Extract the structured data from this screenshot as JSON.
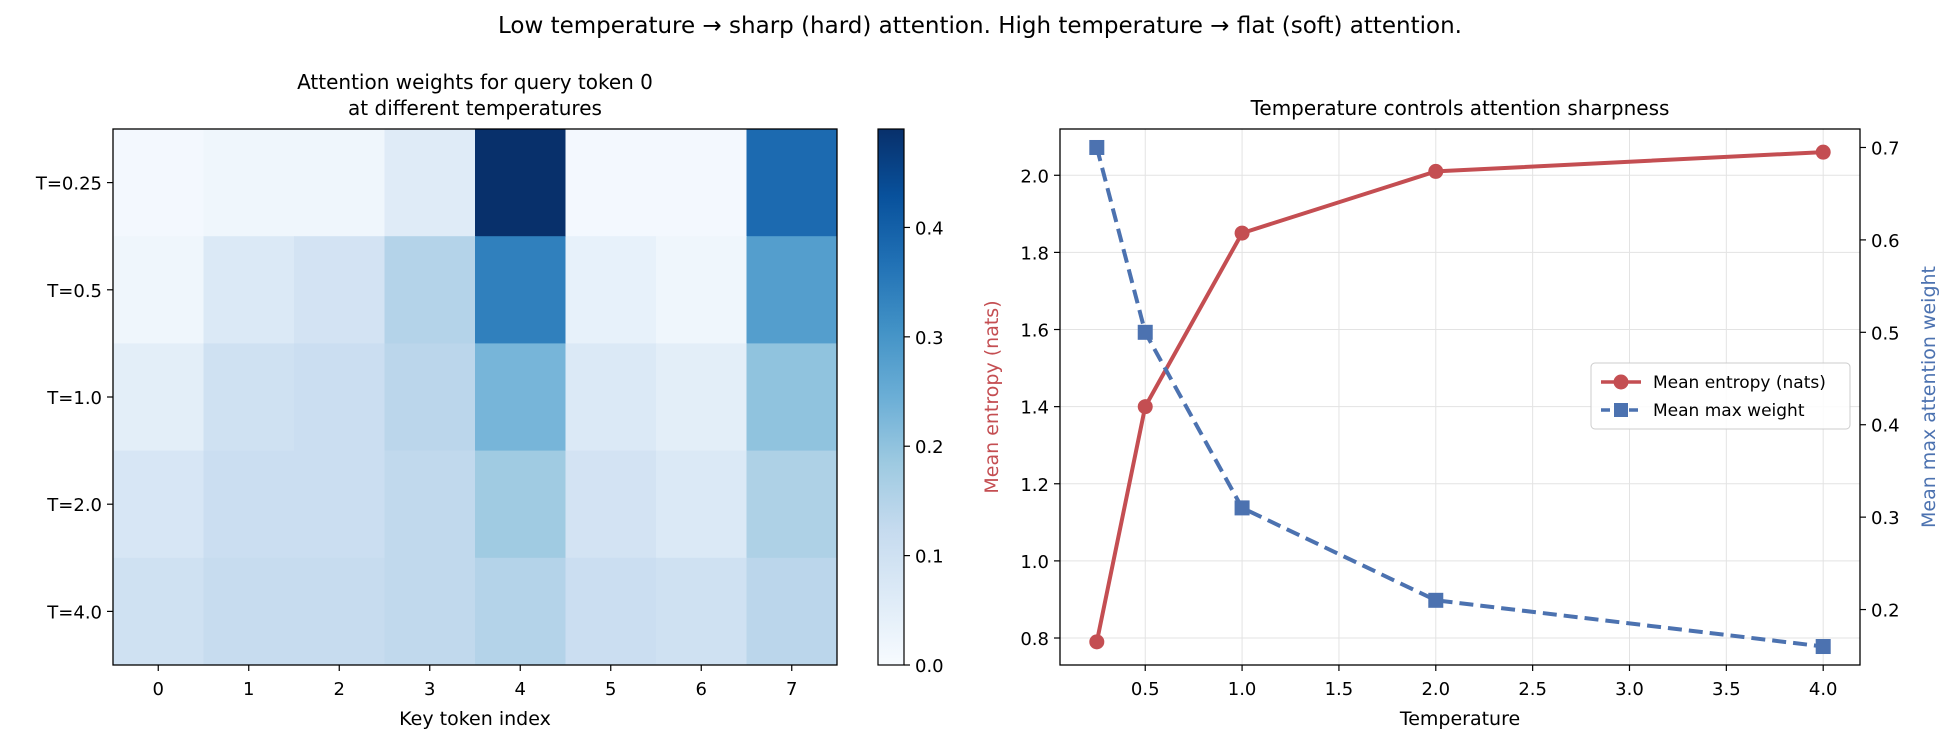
{
  "suptitle": "Low temperature → sharp (hard) attention.  High temperature → flat (soft) attention.",
  "chart_data": [
    {
      "type": "heatmap",
      "title_line1": "Attention weights for query token 0",
      "title_line2": "at different temperatures",
      "xlabel": "Key token index",
      "ylabel": "",
      "x_ticks": [
        "0",
        "1",
        "2",
        "3",
        "4",
        "5",
        "6",
        "7"
      ],
      "y_ticks": [
        "T=0.25",
        "T=0.5",
        "T=1.0",
        "T=2.0",
        "T=4.0"
      ],
      "colormap": "Blues",
      "vmin": 0.0,
      "vmax": 0.49,
      "colorbar_ticks": [
        "0.0",
        "0.1",
        "0.2",
        "0.3",
        "0.4"
      ],
      "values": [
        [
          0.01,
          0.02,
          0.02,
          0.06,
          0.49,
          0.01,
          0.01,
          0.38
        ],
        [
          0.02,
          0.07,
          0.09,
          0.15,
          0.34,
          0.04,
          0.02,
          0.28
        ],
        [
          0.05,
          0.1,
          0.11,
          0.14,
          0.23,
          0.07,
          0.05,
          0.2
        ],
        [
          0.08,
          0.11,
          0.11,
          0.13,
          0.18,
          0.09,
          0.07,
          0.16
        ],
        [
          0.1,
          0.12,
          0.12,
          0.13,
          0.15,
          0.11,
          0.1,
          0.14
        ]
      ]
    },
    {
      "type": "line",
      "title": "Temperature controls attention sharpness",
      "xlabel": "Temperature",
      "ylabel_left": "Mean entropy (nats)",
      "ylabel_right": "Mean max attention weight",
      "x": [
        0.25,
        0.5,
        1.0,
        2.0,
        4.0
      ],
      "xlim": [
        0.06,
        4.19
      ],
      "ylim_left": [
        0.73,
        2.12
      ],
      "ylim_right": [
        0.14,
        0.72
      ],
      "x_ticks": [
        "0.5",
        "1.0",
        "1.5",
        "2.0",
        "2.5",
        "3.0",
        "3.5",
        "4.0"
      ],
      "y_ticks_left": [
        "0.8",
        "1.0",
        "1.2",
        "1.4",
        "1.6",
        "1.8",
        "2.0"
      ],
      "y_ticks_right": [
        "0.2",
        "0.3",
        "0.4",
        "0.5",
        "0.6",
        "0.7"
      ],
      "grid": true,
      "legend_position": "center-right",
      "series": [
        {
          "name": "Mean entropy (nats)",
          "axis": "left",
          "values": [
            0.79,
            1.4,
            1.85,
            2.01,
            2.06
          ],
          "color": "#c44e52",
          "marker": "circle",
          "dashed": false
        },
        {
          "name": "Mean max weight",
          "axis": "right",
          "values": [
            0.7,
            0.5,
            0.31,
            0.21,
            0.16
          ],
          "color": "#4c72b0",
          "marker": "square",
          "dashed": true
        }
      ]
    }
  ]
}
